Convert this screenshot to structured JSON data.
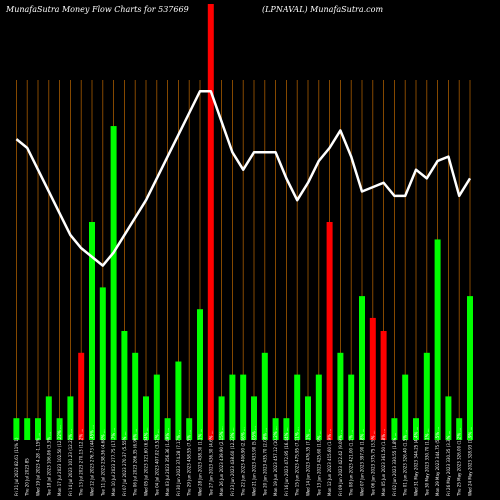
{
  "header": {
    "left": "MunafaSutra  Money Flow  Charts for 537669",
    "right": "(LPNAVAL) MunafaSutra.com"
  },
  "colors": {
    "up": "#00ff00",
    "down": "#ff0000",
    "grid": "#a55a00",
    "line": "#ffffff",
    "background": "#000000"
  },
  "chart_data": {
    "type": "bar",
    "title": "MunafaSutra  Money Flow  Charts for 537669",
    "ylim": [
      0,
      100
    ],
    "grid": true,
    "categories": [
      "Fri 21 Jul 2023 82.61 (11% 1)",
      "Thu 20 Jul 2023 85",
      "Wed 19 Jul 2023 4.28 -1.15% ...",
      "Tue 18 Jul 2023 106.06 (3.3% ...",
      "Mon 17 Jul 2023 102.50 (12.22% ...",
      "Fri 14 Jul 2023 101.23 (12.22% ...",
      "Thu 13 Jul 2023 270.13 (12.2% ...",
      "Wed 12 Jul 2023 276.73 (44.45% ...",
      "Tue 11 Jul 2023 238.36 (4.68% ...",
      "Mon 10 Jul 2023 277.75 (17.7% ...",
      "Fri 07 Jul 2023 270.37 (5.55% ...",
      "Thu 06 Jul 2023 266.35 (6.96% ...",
      "Wed 05 Jul 2023 321.60 (6.94% ...",
      "Tue 04 Jul 2023 407.02 (3.52% ...",
      "Mon 03 Jul 2023 356.36 (1.49% ...",
      "Fri 30 Jun 2023 374.28 (7.17% ...",
      "Thu 29 Jun 2023 458.55 (7.5% ...",
      "Wed 28 Jun 2023 438.30 (1.1% ...",
      "Tue 27 Jun 2023 436.30 (4.6% ...",
      "Mon 26 Jun 2023 439.90 (2.15% ...",
      "Fri 23 Jun 2023 438.60 (12.23% ...",
      "Thu 22 Jun 2023 406.90 (2.06% ...",
      "Wed 21 Jun 2023 433.90 (5.05% ...",
      "Tue 20 Jun 2023 435.70 (2.08% ...",
      "Mon 19 Jun 2023 457.12 (10.2% ...",
      "Fri 16 Jun 2023 472.95 (16.44% ...",
      "Thu 15 Jun 2023 475.95 (7.11% ...",
      "Wed 14 Jun 2023 476.35 (7.1% ...",
      "Tue 13 Jun 2023 425.60 (1.9% ...",
      "Mon 12 Jun 2023 415.60 (1.9% ...",
      "Fri 09 Jun 2023 422.42 (9.09% ...",
      "Thu 08 Jun 2023 421.00 (1.1% ...",
      "Wed 07 Jun 2023 397.90 (1.8% ...",
      "Tue 06 Jun 2023 375.75 (3.5% ...",
      "Mon 05 Jun 2023 361.50 (1.8% ...",
      "Fri 02 Jun 2023 330.55 (1.8% ...",
      "Thu 01 Jun 2023 326.40 (1.5% ...",
      "Wed 31 May 2023 344.25 (4.4% ...",
      "Tue 30 May 2023 330.70 (1.1% ...",
      "Mon 29 May 2023 344.75 (5.5% ...",
      "Fri 26 May 2023 330.35 (3.3% ...",
      "Thu 25 May 2023 326.00 (1.2% ...",
      "Wed 24 May 2023 328.93 (1.9% ..."
    ],
    "series": [
      {
        "values": [
          5,
          5,
          5,
          10,
          5,
          10,
          20,
          50,
          35,
          72,
          25,
          20,
          10,
          15,
          5,
          18,
          5,
          30,
          100,
          10,
          15,
          15,
          10,
          20,
          5,
          5,
          15,
          10,
          15,
          50,
          20,
          15,
          33,
          28,
          25,
          5,
          15,
          5,
          20,
          46,
          10,
          5,
          33
        ],
        "colors": [
          "up",
          "up",
          "up",
          "up",
          "up",
          "up",
          "down",
          "up",
          "up",
          "up",
          "up",
          "up",
          "up",
          "up",
          "up",
          "up",
          "up",
          "up",
          "down",
          "up",
          "up",
          "up",
          "up",
          "up",
          "up",
          "up",
          "up",
          "up",
          "up",
          "down",
          "up",
          "up",
          "up",
          "down",
          "down",
          "up",
          "up",
          "up",
          "up",
          "up",
          "up",
          "up",
          "up"
        ]
      },
      {
        "values": [
          69,
          67,
          62,
          57,
          52,
          47,
          44,
          42,
          40,
          43,
          47,
          51,
          55,
          60,
          65,
          70,
          75,
          80,
          80,
          73,
          66,
          62,
          66,
          66,
          66,
          60,
          55,
          59,
          64,
          67,
          71,
          65,
          57,
          58,
          59,
          56,
          56,
          62,
          60,
          64,
          65,
          56,
          60
        ],
        "style": "line"
      }
    ]
  }
}
